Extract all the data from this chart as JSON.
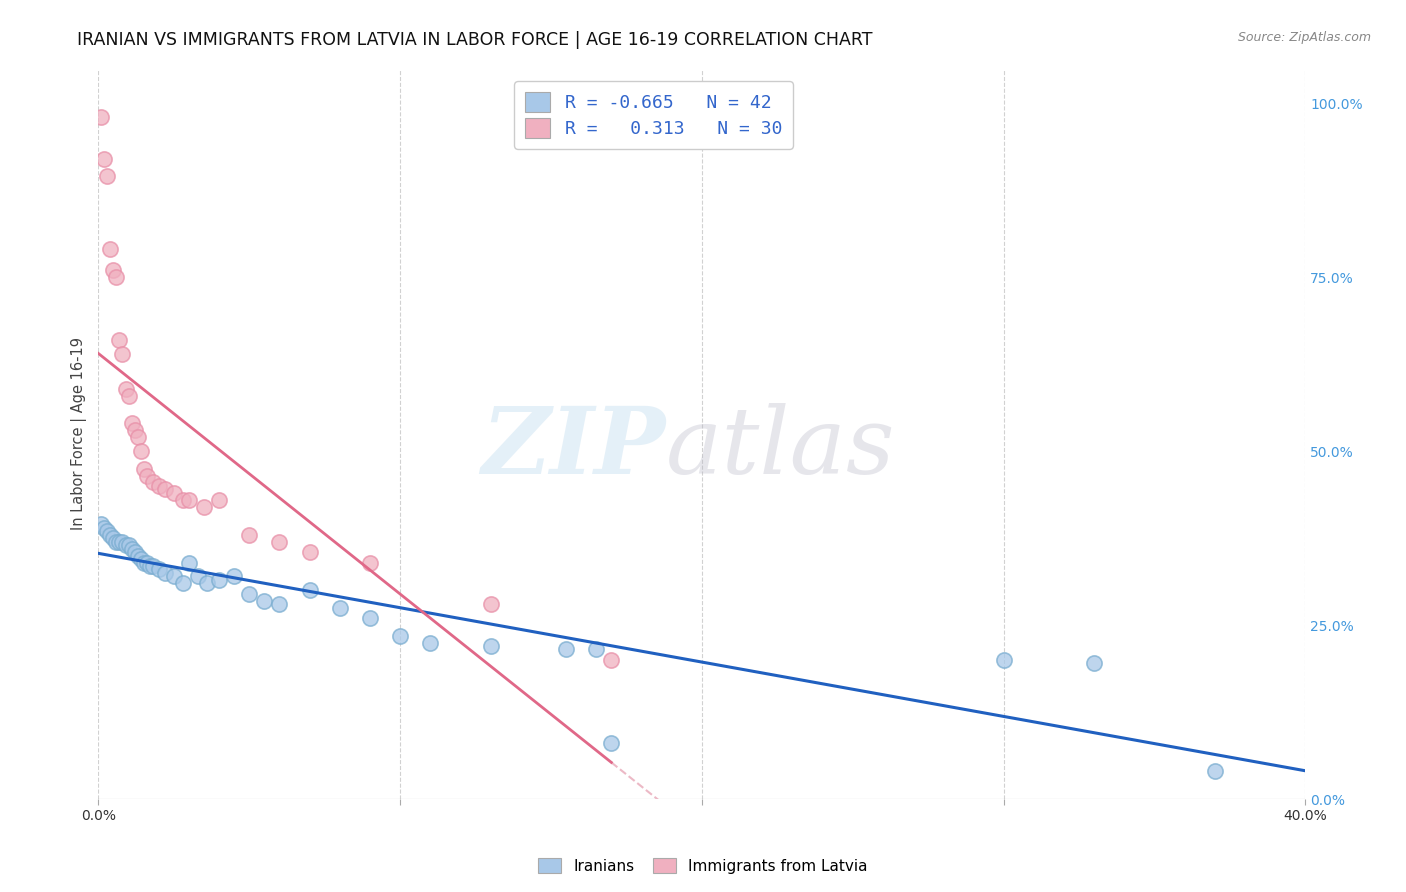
{
  "title": "IRANIAN VS IMMIGRANTS FROM LATVIA IN LABOR FORCE | AGE 16-19 CORRELATION CHART",
  "source": "Source: ZipAtlas.com",
  "ylabel": "In Labor Force | Age 16-19",
  "xlim": [
    0.0,
    0.4
  ],
  "ylim": [
    0.0,
    1.05
  ],
  "yticks": [
    0.0,
    0.25,
    0.5,
    0.75,
    1.0
  ],
  "ytick_labels": [
    "0.0%",
    "25.0%",
    "50.0%",
    "75.0%",
    "100.0%"
  ],
  "xticks": [
    0.0,
    0.1,
    0.2,
    0.3,
    0.4
  ],
  "xtick_labels": [
    "0.0%",
    "",
    "",
    "",
    "40.0%"
  ],
  "blue_color": "#a8c8e8",
  "pink_color": "#f0b0c0",
  "blue_edge_color": "#7aadd0",
  "pink_edge_color": "#e890a8",
  "blue_line_color": "#2060c0",
  "pink_line_color": "#e06888",
  "pink_dash_color": "#e8a8b8",
  "legend_text_color": "#3366cc",
  "right_axis_color": "#4499dd",
  "r_blue": -0.665,
  "n_blue": 42,
  "r_pink": 0.313,
  "n_pink": 30,
  "blue_scatter_x": [
    0.001,
    0.002,
    0.003,
    0.004,
    0.005,
    0.006,
    0.007,
    0.008,
    0.009,
    0.01,
    0.011,
    0.012,
    0.013,
    0.014,
    0.015,
    0.016,
    0.017,
    0.018,
    0.02,
    0.022,
    0.025,
    0.028,
    0.03,
    0.033,
    0.036,
    0.04,
    0.045,
    0.05,
    0.055,
    0.06,
    0.07,
    0.08,
    0.09,
    0.1,
    0.11,
    0.13,
    0.155,
    0.165,
    0.17,
    0.3,
    0.33,
    0.37
  ],
  "blue_scatter_y": [
    0.395,
    0.39,
    0.385,
    0.38,
    0.375,
    0.37,
    0.37,
    0.37,
    0.365,
    0.365,
    0.36,
    0.355,
    0.35,
    0.345,
    0.34,
    0.34,
    0.335,
    0.335,
    0.33,
    0.325,
    0.32,
    0.31,
    0.34,
    0.32,
    0.31,
    0.315,
    0.32,
    0.295,
    0.285,
    0.28,
    0.3,
    0.275,
    0.26,
    0.235,
    0.225,
    0.22,
    0.215,
    0.215,
    0.08,
    0.2,
    0.195,
    0.04
  ],
  "pink_scatter_x": [
    0.001,
    0.002,
    0.003,
    0.004,
    0.005,
    0.006,
    0.007,
    0.008,
    0.009,
    0.01,
    0.011,
    0.012,
    0.013,
    0.014,
    0.015,
    0.016,
    0.018,
    0.02,
    0.022,
    0.025,
    0.028,
    0.03,
    0.035,
    0.04,
    0.05,
    0.06,
    0.07,
    0.09,
    0.13,
    0.17
  ],
  "pink_scatter_y": [
    0.98,
    0.92,
    0.895,
    0.79,
    0.76,
    0.75,
    0.66,
    0.64,
    0.59,
    0.58,
    0.54,
    0.53,
    0.52,
    0.5,
    0.475,
    0.465,
    0.455,
    0.45,
    0.445,
    0.44,
    0.43,
    0.43,
    0.42,
    0.43,
    0.38,
    0.37,
    0.355,
    0.34,
    0.28,
    0.2
  ],
  "background_color": "#ffffff",
  "grid_color": "#cccccc"
}
